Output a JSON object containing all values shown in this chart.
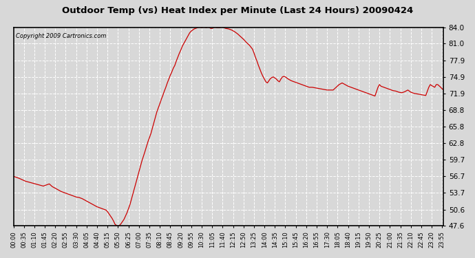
{
  "title": "Outdoor Temp (vs) Heat Index per Minute (Last 24 Hours) 20090424",
  "copyright": "Copyright 2009 Cartronics.com",
  "line_color": "#cc0000",
  "background_color": "#d8d8d8",
  "plot_bg_color": "#d8d8d8",
  "grid_color": "#ffffff",
  "yticks": [
    47.6,
    50.6,
    53.7,
    56.7,
    59.7,
    62.8,
    65.8,
    68.8,
    71.9,
    74.9,
    77.9,
    81.0,
    84.0
  ],
  "ymin": 47.6,
  "ymax": 84.0,
  "xtick_labels": [
    "00:00",
    "00:35",
    "01:10",
    "01:45",
    "02:20",
    "02:55",
    "03:30",
    "04:05",
    "04:40",
    "05:15",
    "05:50",
    "06:25",
    "07:00",
    "07:35",
    "08:10",
    "08:45",
    "09:20",
    "09:55",
    "10:30",
    "11:05",
    "11:40",
    "12:15",
    "12:50",
    "13:25",
    "14:00",
    "14:35",
    "15:10",
    "15:45",
    "16:20",
    "16:55",
    "17:30",
    "18:05",
    "18:40",
    "19:15",
    "19:50",
    "20:25",
    "21:00",
    "21:35",
    "22:10",
    "22:45",
    "23:20",
    "23:55"
  ],
  "data_points": [
    [
      0,
      56.7
    ],
    [
      20,
      56.3
    ],
    [
      40,
      55.8
    ],
    [
      60,
      55.5
    ],
    [
      80,
      55.2
    ],
    [
      100,
      54.9
    ],
    [
      110,
      55.1
    ],
    [
      120,
      55.3
    ],
    [
      130,
      54.8
    ],
    [
      140,
      54.5
    ],
    [
      150,
      54.2
    ],
    [
      160,
      53.9
    ],
    [
      170,
      53.7
    ],
    [
      180,
      53.5
    ],
    [
      190,
      53.3
    ],
    [
      200,
      53.1
    ],
    [
      210,
      52.9
    ],
    [
      220,
      52.8
    ],
    [
      230,
      52.6
    ],
    [
      240,
      52.3
    ],
    [
      250,
      52.0
    ],
    [
      260,
      51.7
    ],
    [
      270,
      51.4
    ],
    [
      280,
      51.1
    ],
    [
      290,
      50.9
    ],
    [
      300,
      50.7
    ],
    [
      310,
      50.5
    ],
    [
      315,
      50.2
    ],
    [
      320,
      49.8
    ],
    [
      325,
      49.4
    ],
    [
      330,
      49.0
    ],
    [
      335,
      48.5
    ],
    [
      340,
      47.9
    ],
    [
      345,
      47.7
    ],
    [
      348,
      47.6
    ],
    [
      352,
      47.6
    ],
    [
      355,
      47.7
    ],
    [
      360,
      48.0
    ],
    [
      370,
      48.8
    ],
    [
      380,
      50.0
    ],
    [
      390,
      51.5
    ],
    [
      400,
      53.5
    ],
    [
      410,
      55.5
    ],
    [
      420,
      57.5
    ],
    [
      430,
      59.5
    ],
    [
      440,
      61.2
    ],
    [
      450,
      63.0
    ],
    [
      460,
      64.5
    ],
    [
      465,
      65.5
    ],
    [
      470,
      66.5
    ],
    [
      475,
      67.5
    ],
    [
      480,
      68.5
    ],
    [
      490,
      70.0
    ],
    [
      495,
      70.8
    ],
    [
      500,
      71.5
    ],
    [
      505,
      72.3
    ],
    [
      510,
      73.0
    ],
    [
      515,
      73.8
    ],
    [
      520,
      74.5
    ],
    [
      525,
      75.2
    ],
    [
      530,
      75.8
    ],
    [
      535,
      76.5
    ],
    [
      540,
      77.0
    ],
    [
      545,
      77.8
    ],
    [
      550,
      78.5
    ],
    [
      555,
      79.2
    ],
    [
      560,
      79.8
    ],
    [
      565,
      80.5
    ],
    [
      570,
      81.0
    ],
    [
      575,
      81.5
    ],
    [
      580,
      82.0
    ],
    [
      585,
      82.5
    ],
    [
      590,
      83.0
    ],
    [
      595,
      83.3
    ],
    [
      600,
      83.5
    ],
    [
      605,
      83.7
    ],
    [
      610,
      83.8
    ],
    [
      615,
      83.9
    ],
    [
      620,
      84.0
    ],
    [
      625,
      84.0
    ],
    [
      630,
      83.9
    ],
    [
      635,
      84.0
    ],
    [
      640,
      84.0
    ],
    [
      645,
      83.9
    ],
    [
      650,
      84.0
    ],
    [
      655,
      84.0
    ],
    [
      660,
      83.8
    ],
    [
      665,
      83.8
    ],
    [
      670,
      83.9
    ],
    [
      675,
      84.0
    ],
    [
      680,
      83.9
    ],
    [
      685,
      83.9
    ],
    [
      690,
      83.9
    ],
    [
      695,
      84.0
    ],
    [
      700,
      84.0
    ],
    [
      705,
      83.9
    ],
    [
      710,
      83.8
    ],
    [
      720,
      83.7
    ],
    [
      730,
      83.5
    ],
    [
      740,
      83.2
    ],
    [
      750,
      82.8
    ],
    [
      760,
      82.3
    ],
    [
      770,
      81.8
    ],
    [
      780,
      81.2
    ],
    [
      790,
      80.7
    ],
    [
      800,
      80.0
    ],
    [
      805,
      79.3
    ],
    [
      810,
      78.5
    ],
    [
      815,
      77.8
    ],
    [
      820,
      77.0
    ],
    [
      825,
      76.3
    ],
    [
      830,
      75.6
    ],
    [
      835,
      75.0
    ],
    [
      840,
      74.5
    ],
    [
      845,
      74.0
    ],
    [
      850,
      73.8
    ],
    [
      855,
      74.2
    ],
    [
      860,
      74.6
    ],
    [
      865,
      74.8
    ],
    [
      870,
      74.9
    ],
    [
      875,
      74.7
    ],
    [
      880,
      74.5
    ],
    [
      885,
      74.2
    ],
    [
      890,
      74.0
    ],
    [
      895,
      74.5
    ],
    [
      900,
      74.9
    ],
    [
      905,
      75.0
    ],
    [
      910,
      74.9
    ],
    [
      915,
      74.7
    ],
    [
      920,
      74.5
    ],
    [
      930,
      74.2
    ],
    [
      940,
      74.0
    ],
    [
      950,
      73.8
    ],
    [
      960,
      73.6
    ],
    [
      970,
      73.4
    ],
    [
      980,
      73.2
    ],
    [
      990,
      73.0
    ],
    [
      1000,
      73.0
    ],
    [
      1010,
      72.9
    ],
    [
      1020,
      72.8
    ],
    [
      1030,
      72.7
    ],
    [
      1040,
      72.6
    ],
    [
      1050,
      72.5
    ],
    [
      1060,
      72.5
    ],
    [
      1070,
      72.5
    ],
    [
      1080,
      73.0
    ],
    [
      1090,
      73.5
    ],
    [
      1100,
      73.8
    ],
    [
      1110,
      73.5
    ],
    [
      1120,
      73.2
    ],
    [
      1130,
      73.0
    ],
    [
      1140,
      72.8
    ],
    [
      1150,
      72.6
    ],
    [
      1160,
      72.4
    ],
    [
      1170,
      72.2
    ],
    [
      1180,
      72.0
    ],
    [
      1190,
      71.8
    ],
    [
      1200,
      71.6
    ],
    [
      1210,
      71.4
    ],
    [
      1220,
      73.0
    ],
    [
      1225,
      73.5
    ],
    [
      1230,
      73.2
    ],
    [
      1240,
      73.0
    ],
    [
      1250,
      72.8
    ],
    [
      1260,
      72.6
    ],
    [
      1270,
      72.4
    ],
    [
      1280,
      72.3
    ],
    [
      1290,
      72.1
    ],
    [
      1300,
      72.0
    ],
    [
      1310,
      72.2
    ],
    [
      1320,
      72.5
    ],
    [
      1325,
      72.3
    ],
    [
      1330,
      72.1
    ],
    [
      1340,
      71.9
    ],
    [
      1350,
      71.8
    ],
    [
      1360,
      71.7
    ],
    [
      1370,
      71.6
    ],
    [
      1380,
      71.5
    ],
    [
      1390,
      73.0
    ],
    [
      1395,
      73.5
    ],
    [
      1400,
      73.3
    ],
    [
      1410,
      73.0
    ],
    [
      1415,
      73.5
    ],
    [
      1420,
      73.5
    ],
    [
      1430,
      73.0
    ],
    [
      1435,
      72.7
    ],
    [
      1439,
      72.5
    ]
  ]
}
